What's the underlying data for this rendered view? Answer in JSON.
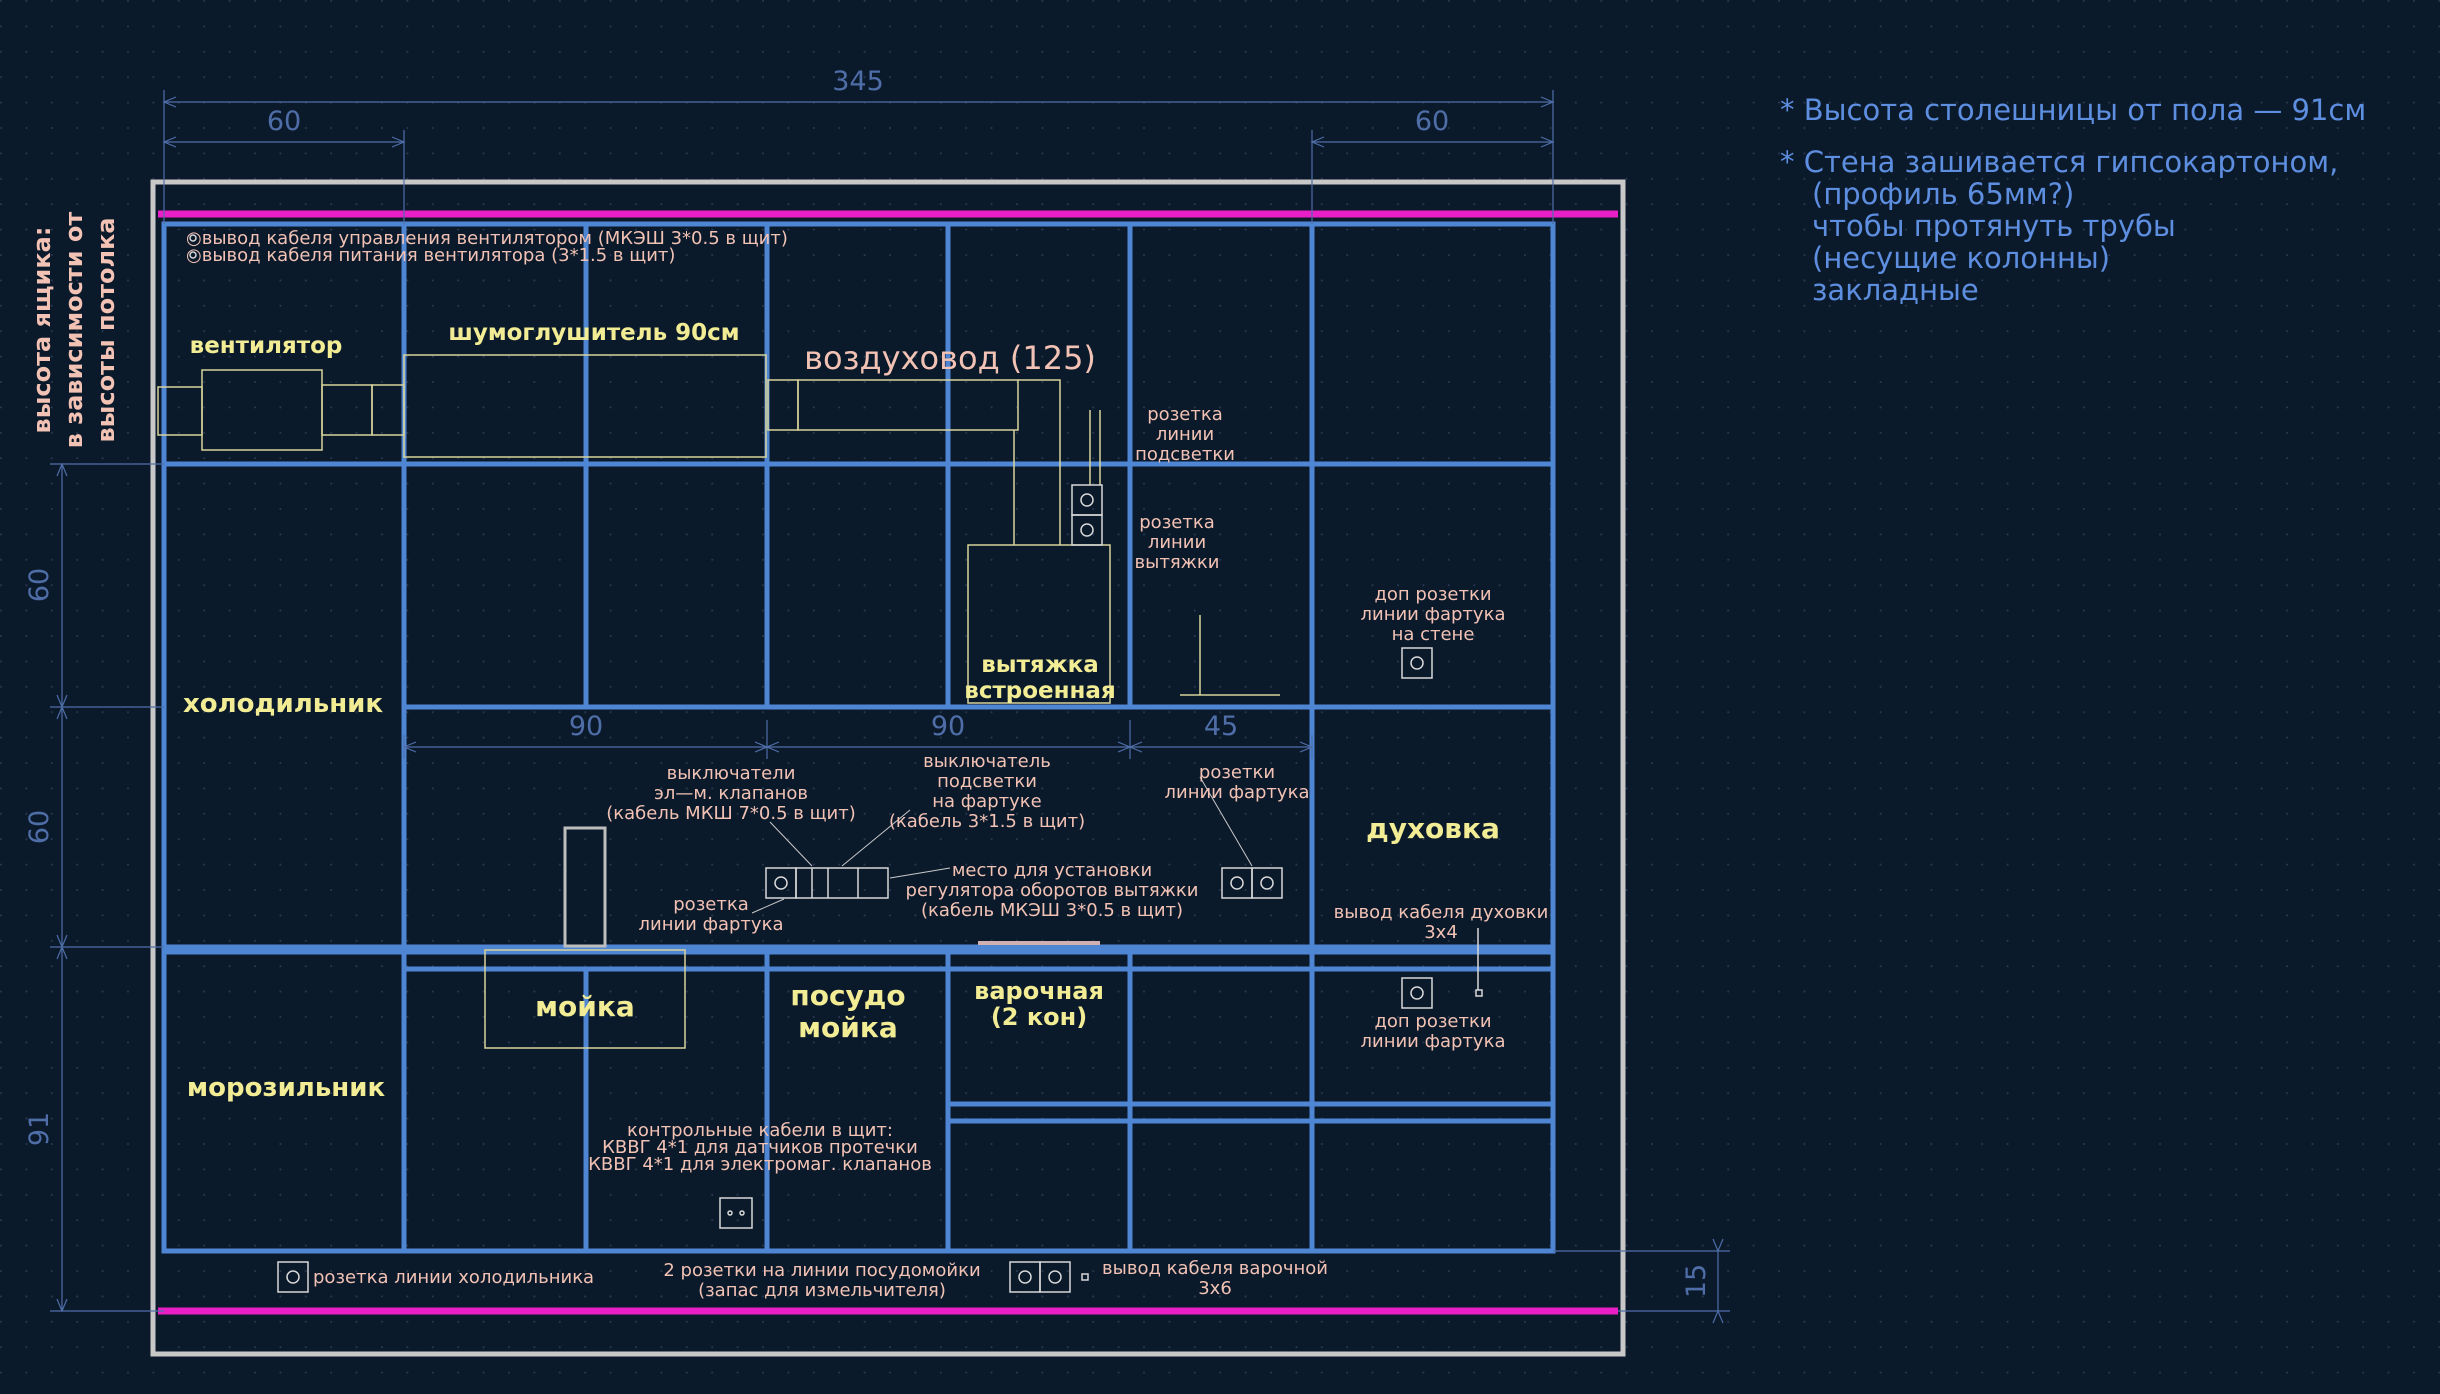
{
  "colors": {
    "background": "#0b1a2b",
    "cabinet_blue": "#4f86d4",
    "magenta_line": "#e81fc6",
    "frame_gray": "#c8c8c8",
    "dimension": "#4f6ea8",
    "label_yellow": "#f2ec95",
    "label_pink": "#f2c2b4",
    "note_blue": "#5d8ee0"
  },
  "notes": [
    "* Высота столешницы от пола — 91см",
    "* Стена зашивается гипсокартоном,",
    "(профиль 65мм?)",
    "чтобы протянуть трубы",
    "(несущие колонны)",
    "закладные"
  ],
  "left_note": [
    "высота ящика:",
    "в зависимости от",
    "высоты потолка"
  ],
  "dimensions": {
    "total_width": "345",
    "left_60": "60",
    "right_60": "60",
    "v_60_upper": "60",
    "v_60_lower": "60",
    "v_91": "91",
    "v_15": "15",
    "h_90_a": "90",
    "h_90_b": "90",
    "h_45": "45"
  },
  "labels": {
    "fan_cable_control": "○вывод кабеля управления вентилятором (МКЭШ 3*0.5 в щит)",
    "fan_cable_power": "○вывод кабеля питания вентилятора (3*1.5 в щит)",
    "fan": "вентилятор",
    "silencer": "шумоглушитель 90см",
    "duct": "воздуховод (125)",
    "socket_backlight": [
      "розетка",
      "линии",
      "подсветки"
    ],
    "socket_hood": [
      "розетка",
      "линии",
      "вытяжки"
    ],
    "extra_sockets_wall": [
      "доп розетки",
      "линии фартука",
      "на стене"
    ],
    "hood": [
      "вытяжка",
      "встроенная"
    ],
    "fridge": "холодильник",
    "oven": "духовка",
    "valve_switches": [
      "выключатели",
      "эл—м. клапанов",
      "(кабель МКШ 7*0.5 в щит)"
    ],
    "backlight_switch": [
      "выключатель",
      "подсветки",
      "на фартуке",
      "(кабель 3*1.5 в щит)"
    ],
    "apron_sockets_right": [
      "розетки",
      "линии фартука"
    ],
    "regulator": [
      "место для установки",
      "регулятора оборотов вытяжки",
      "(кабель МКЭШ 3*0.5 в щит)"
    ],
    "apron_socket_left": [
      "розетка",
      "линии фартука"
    ],
    "oven_cable": [
      "вывод кабеля духовки",
      "3х4"
    ],
    "sink": "мойка",
    "dishwasher": [
      "посудо",
      "мойка"
    ],
    "hob": [
      "варочная",
      "(2 кон)"
    ],
    "extra_sockets_apron": [
      "доп розетки",
      "линии фартука"
    ],
    "freezer": "морозильник",
    "control_cables": [
      "контрольные кабели в щит:",
      "КВВГ 4*1 для датчиков протечки",
      "КВВГ 4*1 для электромаг. клапанов"
    ],
    "fridge_socket": "розетка линии холодильника",
    "dishwasher_sockets": [
      "2 розетки на линии посудомойки",
      "(запас для измельчителя)"
    ],
    "hob_cable": [
      "вывод кабеля варочной",
      "3х6"
    ]
  }
}
